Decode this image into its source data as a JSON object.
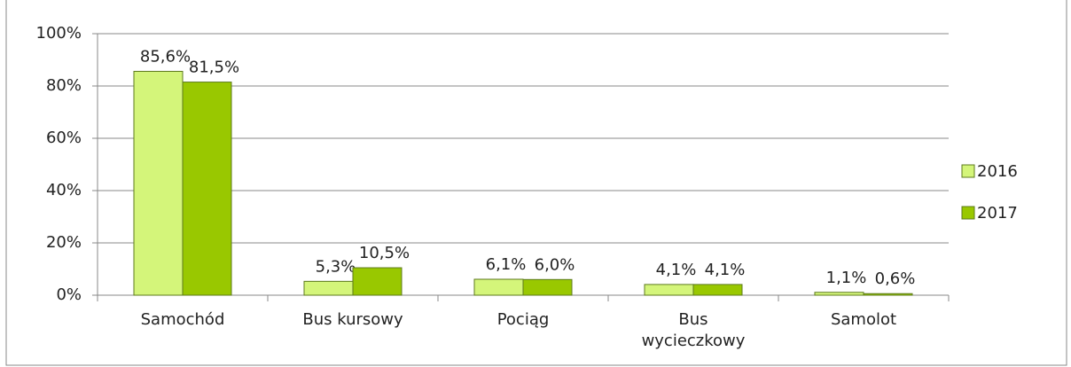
{
  "chart_data": {
    "type": "bar",
    "categories": [
      "Samochód",
      "Bus kursowy",
      "Pociąg",
      "Bus wycieczkowy",
      "Samolot"
    ],
    "series": [
      {
        "name": "2016",
        "color": "#d4f57a",
        "values": [
          85.6,
          5.3,
          6.1,
          4.1,
          1.1
        ],
        "value_labels": [
          "85,6%",
          "5,3%",
          "6,1%",
          "4,1%",
          "1,1%"
        ]
      },
      {
        "name": "2017",
        "color": "#99c800",
        "values": [
          81.5,
          10.5,
          6.0,
          4.1,
          0.6
        ],
        "value_labels": [
          "81,5%",
          "10,5%",
          "6,0%",
          "4,1%",
          "0,6%"
        ]
      }
    ],
    "ylim": [
      0,
      100
    ],
    "yticks": [
      {
        "value": 0,
        "label": "0%"
      },
      {
        "value": 20,
        "label": "20%"
      },
      {
        "value": 40,
        "label": "40%"
      },
      {
        "value": 60,
        "label": "60%"
      },
      {
        "value": 80,
        "label": "80%"
      },
      {
        "value": 100,
        "label": "100%"
      }
    ],
    "grid": true,
    "legend": "right"
  }
}
